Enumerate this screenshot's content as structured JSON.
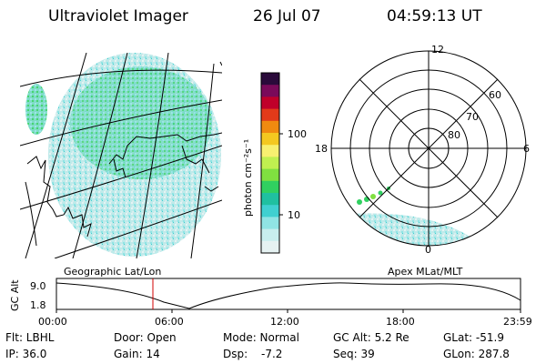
{
  "header": {
    "title": "Ultraviolet Imager",
    "date": "26 Jul 07",
    "time": "04:59:13 UT"
  },
  "geo_panel": {
    "label": "Geographic Lat/Lon"
  },
  "polar_panel": {
    "label": "Apex MLat/MLT",
    "mlt_labels": [
      "12",
      "18",
      "6",
      "0"
    ],
    "mlat_labels": [
      "60",
      "70",
      "80"
    ]
  },
  "colorbar": {
    "unit": "photon cm⁻²s⁻¹",
    "ticks": [
      "100",
      "10"
    ],
    "colors": [
      "#2a0a3a",
      "#7a0a5a",
      "#c0002a",
      "#e23a1a",
      "#f08a10",
      "#f4c820",
      "#f8f070",
      "#c0f050",
      "#80e040",
      "#30d060",
      "#20c0a0",
      "#40d0d0",
      "#90e4e4",
      "#c8eeee",
      "#e6f2f2"
    ]
  },
  "altitude_plot": {
    "ylabel": "GC Alt",
    "ytick_top": "9.0",
    "ytick_bottom": "1.8",
    "xticks": [
      "00:00",
      "06:00",
      "12:00",
      "18:00",
      "23:59"
    ],
    "current_time_marker": "04:59",
    "marker_color": "#d00000"
  },
  "info": {
    "flt": "Flt: LBHL",
    "door": "Door: Open",
    "mode": "Mode: Normal",
    "gc_alt": "GC Alt: 5.2 Re",
    "glat": "GLat: -51.9",
    "ip": "IP: 36.0",
    "gain": "Gain: 14",
    "dsp_label": "Dsp:",
    "dsp_value": "-7.2",
    "seq": "Seq: 39",
    "glon": "GLon: 287.8"
  }
}
